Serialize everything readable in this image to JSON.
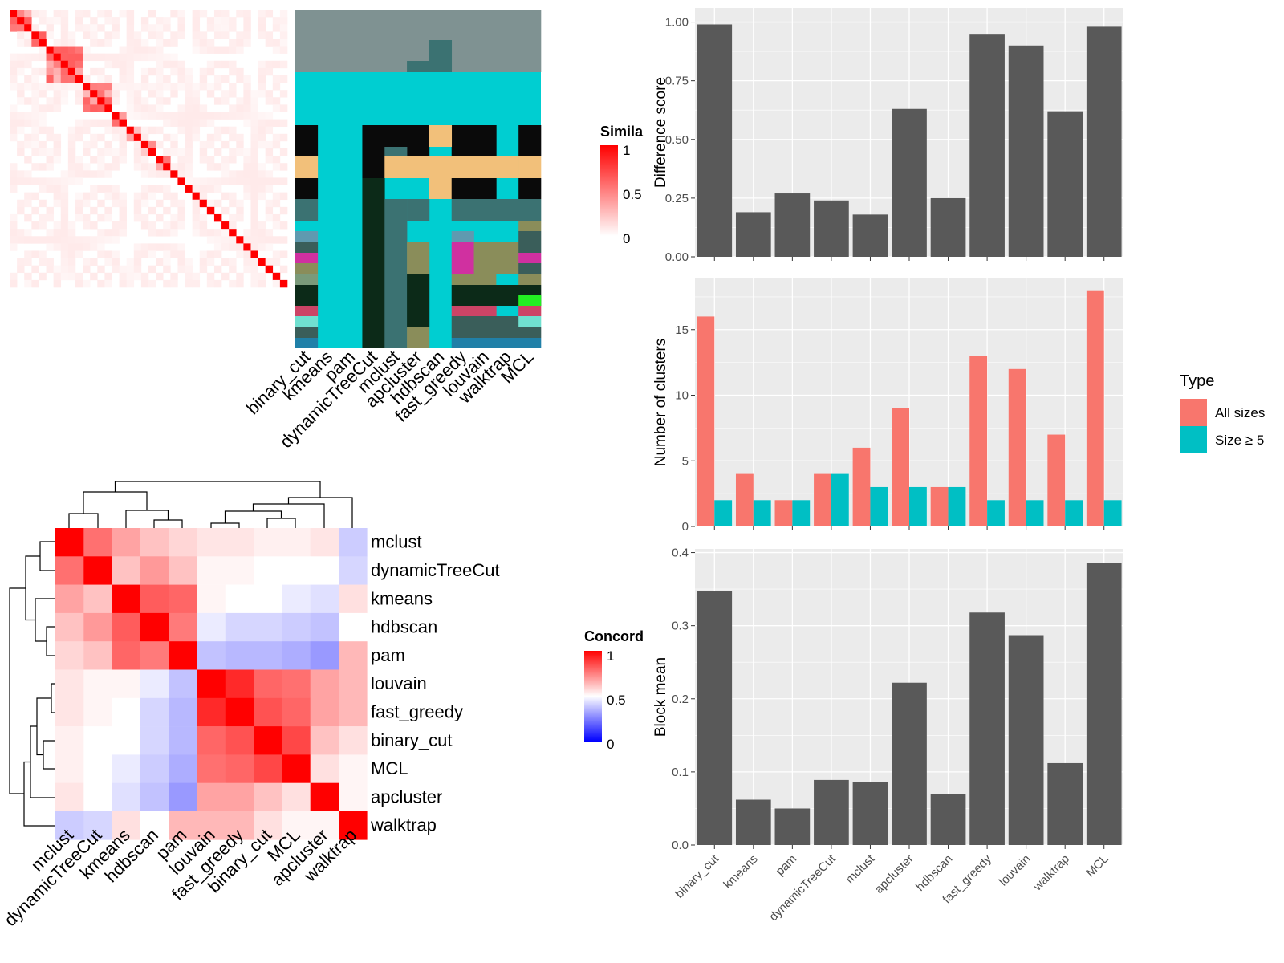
{
  "methods_order": [
    "binary_cut",
    "kmeans",
    "pam",
    "dynamicTreeCut",
    "mclust",
    "apcluster",
    "hdbscan",
    "fast_greedy",
    "louvain",
    "walktrap",
    "MCL"
  ],
  "similarity_legend": {
    "title": "Simila",
    "ticks": [
      "1",
      "0.5",
      "0"
    ],
    "colors": [
      "#ff0000",
      "#ffffff"
    ]
  },
  "concordance_legend": {
    "title": "Concord",
    "ticks": [
      "1",
      "0.5",
      "0"
    ],
    "colors": [
      "#ff0000",
      "#ffffff",
      "#0000ff"
    ]
  },
  "type_legend": {
    "title": "Type",
    "items": [
      {
        "label": "All sizes",
        "color": "#F8766D"
      },
      {
        "label": "Size ≥ 5",
        "color": "#00BFC4"
      }
    ]
  },
  "chart_data": [
    {
      "type": "heatmap",
      "name": "similarity-matrix",
      "n_terms": 38,
      "scale": "similarity 0 (white) to 1 (red)",
      "diagonal_value": 1,
      "blocks": [
        [
          0,
          3
        ],
        [
          3,
          5
        ],
        [
          5,
          10
        ],
        [
          10,
          14
        ],
        [
          14,
          16
        ],
        [
          16,
          18
        ],
        [
          18,
          20
        ],
        [
          20,
          22
        ]
      ]
    },
    {
      "type": "heatmap",
      "name": "cluster-assignment",
      "columns": [
        "binary_cut",
        "kmeans",
        "pam",
        "dynamicTreeCut",
        "mclust",
        "apcluster",
        "hdbscan",
        "fast_greedy",
        "louvain",
        "walktrap",
        "MCL"
      ]
    },
    {
      "type": "heatmap",
      "name": "concordance",
      "row_labels": [
        "mclust",
        "dynamicTreeCut",
        "kmeans",
        "hdbscan",
        "pam",
        "louvain",
        "fast_greedy",
        "binary_cut",
        "MCL",
        "apcluster",
        "walktrap"
      ],
      "col_labels": [
        "mclust",
        "dynamicTreeCut",
        "kmeans",
        "hdbscan",
        "pam",
        "louvain",
        "fast_greedy",
        "binary_cut",
        "MCL",
        "apcluster",
        "walktrap"
      ],
      "values": [
        [
          1.0,
          0.78,
          0.68,
          0.62,
          0.58,
          0.55,
          0.55,
          0.53,
          0.53,
          0.55,
          0.4
        ],
        [
          0.78,
          1.0,
          0.62,
          0.7,
          0.62,
          0.52,
          0.52,
          0.5,
          0.5,
          0.5,
          0.42
        ],
        [
          0.68,
          0.62,
          1.0,
          0.82,
          0.8,
          0.52,
          0.5,
          0.5,
          0.46,
          0.44,
          0.56
        ],
        [
          0.62,
          0.7,
          0.82,
          1.0,
          0.76,
          0.46,
          0.42,
          0.42,
          0.4,
          0.38,
          0.5
        ],
        [
          0.58,
          0.62,
          0.8,
          0.76,
          1.0,
          0.38,
          0.36,
          0.36,
          0.34,
          0.3,
          0.64
        ],
        [
          0.55,
          0.52,
          0.52,
          0.46,
          0.38,
          1.0,
          0.92,
          0.8,
          0.78,
          0.68,
          0.64
        ],
        [
          0.55,
          0.52,
          0.5,
          0.42,
          0.36,
          0.92,
          1.0,
          0.84,
          0.8,
          0.68,
          0.64
        ],
        [
          0.53,
          0.5,
          0.5,
          0.42,
          0.36,
          0.8,
          0.84,
          1.0,
          0.86,
          0.62,
          0.56
        ],
        [
          0.53,
          0.5,
          0.46,
          0.4,
          0.34,
          0.78,
          0.8,
          0.86,
          1.0,
          0.56,
          0.52
        ],
        [
          0.55,
          0.5,
          0.44,
          0.38,
          0.3,
          0.68,
          0.68,
          0.62,
          0.56,
          1.0,
          0.52
        ],
        [
          0.4,
          0.42,
          0.56,
          0.5,
          0.64,
          0.64,
          0.64,
          0.56,
          0.52,
          0.52,
          1.0
        ]
      ]
    },
    {
      "type": "bar",
      "name": "difference-score",
      "categories": [
        "binary_cut",
        "kmeans",
        "pam",
        "dynamicTreeCut",
        "mclust",
        "apcluster",
        "hdbscan",
        "fast_greedy",
        "louvain",
        "walktrap",
        "MCL"
      ],
      "values": [
        0.99,
        0.19,
        0.27,
        0.24,
        0.18,
        0.63,
        0.25,
        0.95,
        0.9,
        0.62,
        0.98
      ],
      "ylabel": "Difference score",
      "ylim": [
        0,
        1.06
      ],
      "yticks": [
        "0.00",
        "0.25",
        "0.50",
        "0.75",
        "1.00"
      ]
    },
    {
      "type": "bar",
      "name": "number-of-clusters",
      "categories": [
        "binary_cut",
        "kmeans",
        "pam",
        "dynamicTreeCut",
        "mclust",
        "apcluster",
        "hdbscan",
        "fast_greedy",
        "louvain",
        "walktrap",
        "MCL"
      ],
      "series": [
        {
          "name": "All sizes",
          "values": [
            16,
            4,
            2,
            4,
            6,
            9,
            3,
            13,
            12,
            7,
            18
          ]
        },
        {
          "name": "Size ≥ 5",
          "values": [
            2,
            2,
            2,
            4,
            3,
            3,
            3,
            2,
            2,
            2,
            2
          ]
        }
      ],
      "ylabel": "Number of clusters",
      "ylim": [
        0,
        18.9
      ],
      "yticks": [
        "0",
        "5",
        "10",
        "15"
      ]
    },
    {
      "type": "bar",
      "name": "block-mean",
      "categories": [
        "binary_cut",
        "kmeans",
        "pam",
        "dynamicTreeCut",
        "mclust",
        "apcluster",
        "hdbscan",
        "fast_greedy",
        "louvain",
        "walktrap",
        "MCL"
      ],
      "values": [
        0.347,
        0.062,
        0.05,
        0.089,
        0.086,
        0.222,
        0.07,
        0.318,
        0.287,
        0.112,
        0.386
      ],
      "ylabel": "Block mean",
      "ylim": [
        0,
        0.405
      ],
      "yticks": [
        "0.0",
        "0.1",
        "0.2",
        "0.3",
        "0.4"
      ]
    }
  ]
}
